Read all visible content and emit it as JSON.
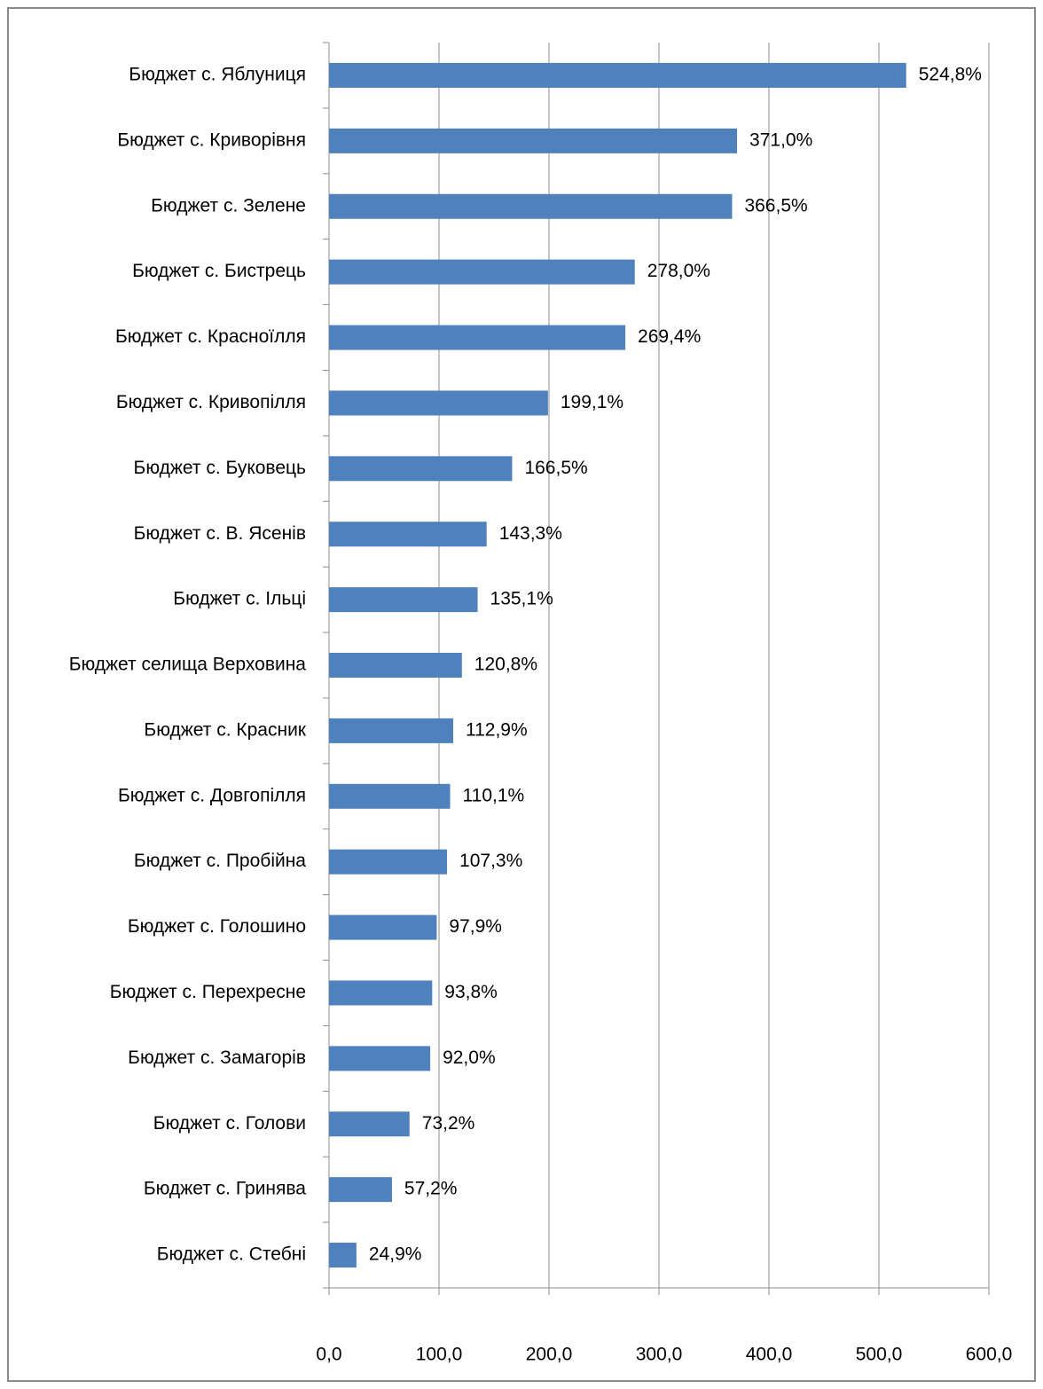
{
  "chart_data": {
    "type": "bar",
    "orientation": "horizontal",
    "categories": [
      "Бюджет с. Яблуниця",
      "Бюджет с. Криворівня",
      "Бюджет с. Зелене",
      "Бюджет с. Бистрець",
      "Бюджет с. Красноїлля",
      "Бюджет с. Кривопілля",
      "Бюджет с. Буковець",
      "Бюджет с. В. Ясенів",
      "Бюджет с. Ільці",
      "Бюджет селища Верховина",
      "Бюджет с. Красник",
      "Бюджет с. Довгопілля",
      "Бюджет с. Пробійна",
      "Бюджет с. Голошино",
      "Бюджет с. Перехресне",
      "Бюджет с. Замагорів",
      "Бюджет с. Голови",
      "Бюджет с. Гринява",
      "Бюджет с. Стебні"
    ],
    "values": [
      524.8,
      371.0,
      366.5,
      278.0,
      269.4,
      199.1,
      166.5,
      143.3,
      135.1,
      120.8,
      112.9,
      110.1,
      107.3,
      97.9,
      93.8,
      92.0,
      73.2,
      57.2,
      24.9
    ],
    "value_labels": [
      "524,8%",
      "371,0%",
      "366,5%",
      "278,0%",
      "269,4%",
      "199,1%",
      "166,5%",
      "143,3%",
      "135,1%",
      "120,8%",
      "112,9%",
      "110,1%",
      "107,3%",
      "97,9%",
      "93,8%",
      "92,0%",
      "73,2%",
      "57,2%",
      "24,9%"
    ],
    "color": "#4f81bd",
    "xlim": [
      0,
      600
    ],
    "xticks": [
      {
        "value": 0,
        "label": "0,0"
      },
      {
        "value": 100,
        "label": "100,0"
      },
      {
        "value": 200,
        "label": "200,0"
      },
      {
        "value": 300,
        "label": "300,0"
      },
      {
        "value": 400,
        "label": "400,0"
      },
      {
        "value": 500,
        "label": "500,0"
      },
      {
        "value": 600,
        "label": "600,0"
      }
    ],
    "grid": true
  }
}
